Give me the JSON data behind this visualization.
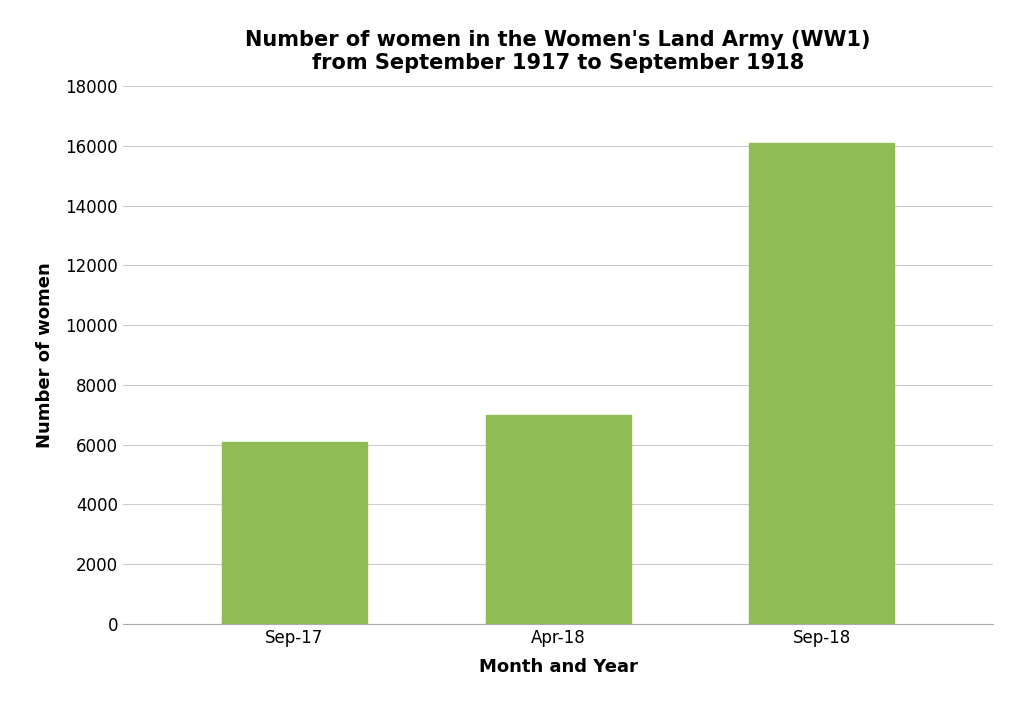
{
  "categories": [
    "Sep-17",
    "Apr-18",
    "Sep-18"
  ],
  "values": [
    6100,
    7000,
    16100
  ],
  "bar_color": "#8fbc55",
  "title_line1": "Number of women in the Women's Land Army (WW1)",
  "title_line2": "from September 1917 to September 1918",
  "xlabel": "Month and Year",
  "ylabel": "Number of women",
  "ylim": [
    0,
    18000
  ],
  "yticks": [
    0,
    2000,
    4000,
    6000,
    8000,
    10000,
    12000,
    14000,
    16000,
    18000
  ],
  "background_color": "#ffffff",
  "title_fontsize": 15,
  "axis_label_fontsize": 13,
  "tick_fontsize": 12,
  "bar_width": 0.55
}
